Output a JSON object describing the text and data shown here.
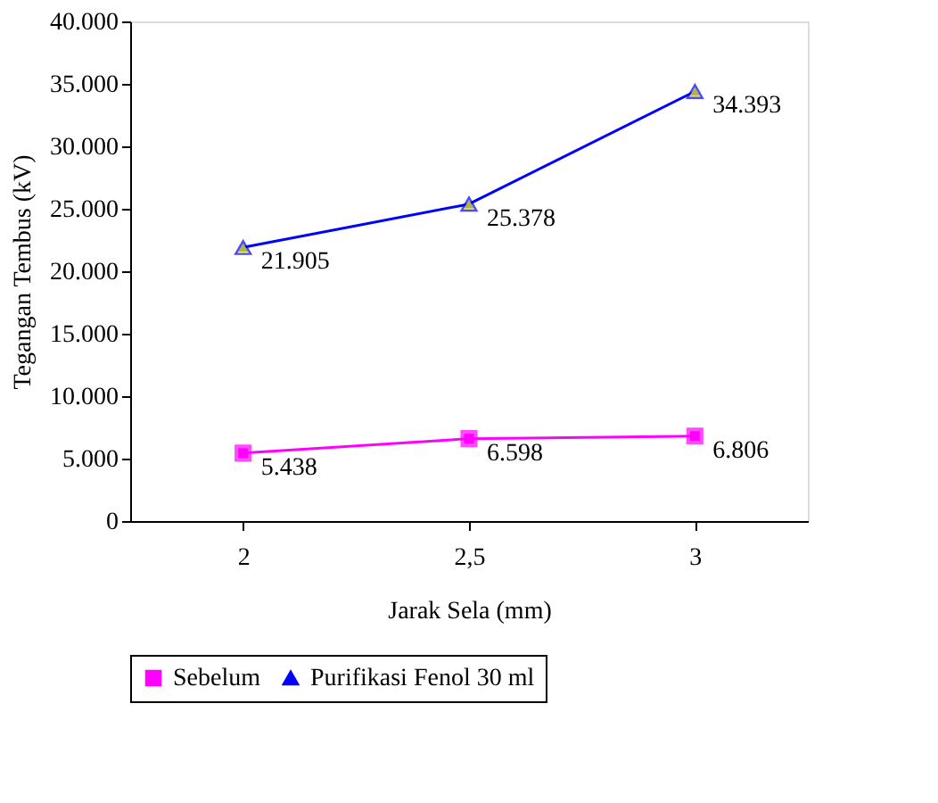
{
  "chart_data": {
    "type": "line",
    "xlabel": "Jarak Sela (mm)",
    "ylabel": "Tegangan Tembus (kV)",
    "categories": [
      "2",
      "2,5",
      "3"
    ],
    "series": [
      {
        "name": "Sebelum",
        "color": "#ff00ff",
        "marker": "square",
        "values": [
          5438,
          6598,
          6806
        ],
        "value_labels": [
          "5.438",
          "6.598",
          "6.806"
        ]
      },
      {
        "name": "Purifikasi Fenol 30 ml",
        "color": "#0000ff",
        "marker": "triangle",
        "values": [
          21905,
          25378,
          34393
        ],
        "value_labels": [
          "21.905",
          "25.378",
          "34.393"
        ]
      }
    ],
    "ylim": [
      0,
      40000
    ],
    "yticks": [
      0,
      {
        "value": 5000,
        "label": "5.000"
      },
      {
        "value": 10000,
        "label": "10.000"
      },
      {
        "value": 15000,
        "label": "15.000"
      },
      {
        "value": 20000,
        "label": "20.000"
      },
      {
        "value": 25000,
        "label": "25.000"
      },
      {
        "value": 30000,
        "label": "30.000"
      },
      {
        "value": 35000,
        "label": "35.000"
      },
      {
        "value": 40000,
        "label": "40.000"
      }
    ],
    "grid": false,
    "legend": "bottom",
    "line_style": "solid"
  }
}
